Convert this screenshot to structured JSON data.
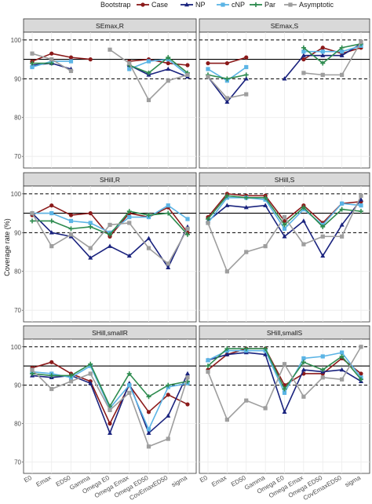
{
  "chart_data": {
    "type": "line",
    "legend": {
      "title": "Bootstrap",
      "position": "top"
    },
    "ylabel": "Coverage rate (%)",
    "ylim": [
      67,
      102
    ],
    "yticks": [
      70,
      80,
      90,
      100
    ],
    "reference_lines": {
      "solid": 95,
      "dashed": [
        90,
        100
      ]
    },
    "categories": [
      "E0",
      "Emax",
      "ED50",
      "Gamma",
      "Omega E0",
      "Omega Emax",
      "Omega ED50",
      "CovEmaxED50",
      "sigma"
    ],
    "colors": {
      "Case": "#8b1a1a",
      "NP": "#1a237e",
      "cNP": "#5bb4e5",
      "Par": "#2e8b4f",
      "Asymptotic": "#9e9e9e"
    },
    "markers": {
      "Case": "circle",
      "NP": "triangle",
      "cNP": "square",
      "Par": "cross",
      "Asymptotic": "square"
    },
    "panels": [
      {
        "title": "SEmax,R",
        "series": [
          {
            "name": "Case",
            "values": [
              94.5,
              96.5,
              95.5,
              95,
              null,
              94.5,
              95,
              94,
              93.5
            ]
          },
          {
            "name": "NP",
            "values": [
              93.5,
              94,
              92.5,
              null,
              null,
              93.5,
              91,
              92.5,
              90.5
            ]
          },
          {
            "name": "cNP",
            "values": [
              93,
              94.5,
              94.5,
              null,
              null,
              92.5,
              94.5,
              95,
              91
            ]
          },
          {
            "name": "Par",
            "values": [
              94,
              94,
              null,
              null,
              null,
              93.5,
              91.5,
              95.5,
              91.5
            ]
          },
          {
            "name": "Asymptotic",
            "values": [
              96.5,
              95,
              92,
              null,
              97.5,
              94,
              84.5,
              89.5,
              91
            ]
          }
        ]
      },
      {
        "title": "SEmax,S",
        "series": [
          {
            "name": "Case",
            "values": [
              94,
              94,
              95.5,
              null,
              null,
              95,
              98,
              96.5,
              98
            ]
          },
          {
            "name": "NP",
            "values": [
              90.5,
              84,
              90,
              null,
              90,
              96,
              96,
              96,
              99
            ]
          },
          {
            "name": "cNP",
            "values": [
              92.5,
              89.5,
              93,
              null,
              null,
              97,
              97,
              97,
              98.5
            ]
          },
          {
            "name": "Par",
            "values": [
              91,
              90,
              91,
              null,
              null,
              98,
              94,
              98,
              99
            ]
          },
          {
            "name": "Asymptotic",
            "values": [
              90.5,
              85,
              86,
              null,
              null,
              91.5,
              91,
              91,
              99.5
            ]
          }
        ]
      },
      {
        "title": "SHill,R",
        "series": [
          {
            "name": "Case",
            "values": [
              94.5,
              97,
              94.5,
              95,
              89,
              95,
              94,
              96.5,
              90
            ]
          },
          {
            "name": "NP",
            "values": [
              95,
              90,
              89,
              83.5,
              86.5,
              84,
              88.5,
              81,
              91.5
            ]
          },
          {
            "name": "cNP",
            "values": [
              95,
              95,
              93,
              92.5,
              90,
              94,
              94,
              97,
              93.5
            ]
          },
          {
            "name": "Par",
            "values": [
              93,
              93,
              91,
              91.5,
              89.5,
              95.5,
              94.5,
              95,
              89.5
            ]
          },
          {
            "name": "Asymptotic",
            "values": [
              95,
              86.5,
              89.5,
              86,
              92,
              92.5,
              86,
              82,
              91
            ]
          }
        ]
      },
      {
        "title": "SHill,S",
        "series": [
          {
            "name": "Case",
            "values": [
              94,
              100,
              99.5,
              99.5,
              93,
              97,
              92.5,
              97.5,
              98
            ]
          },
          {
            "name": "NP",
            "values": [
              93,
              97,
              96.5,
              97,
              89,
              93,
              84,
              92,
              98.5
            ]
          },
          {
            "name": "cNP",
            "values": [
              92.5,
              99,
              99,
              98.5,
              91,
              96,
              92,
              97.5,
              97
            ]
          },
          {
            "name": "Par",
            "values": [
              93.5,
              99.5,
              99,
              99,
              92,
              96.5,
              91.5,
              96,
              95.5
            ]
          },
          {
            "name": "Asymptotic",
            "values": [
              92.5,
              80,
              85,
              86.5,
              94,
              87,
              89,
              89,
              99.5
            ]
          }
        ]
      },
      {
        "title": "SHill,smallR",
        "series": [
          {
            "name": "Case",
            "values": [
              94.5,
              96,
              93,
              91,
              80,
              90,
              83,
              87.5,
              85
            ]
          },
          {
            "name": "NP",
            "values": [
              92.5,
              92,
              92.5,
              90.5,
              77.5,
              90.5,
              77.5,
              82,
              93
            ]
          },
          {
            "name": "cNP",
            "values": [
              93.5,
              93,
              92,
              95,
              84,
              90,
              78.5,
              89.5,
              90.5
            ]
          },
          {
            "name": "Par",
            "values": [
              93,
              92.5,
              92.5,
              95.5,
              84.5,
              93,
              87,
              90,
              91
            ]
          },
          {
            "name": "Asymptotic",
            "values": [
              94,
              89,
              91,
              93,
              83.5,
              88,
              74,
              76,
              92
            ]
          }
        ]
      },
      {
        "title": "SHill,smallS",
        "series": [
          {
            "name": "Case",
            "values": [
              94,
              98,
              99.5,
              99.5,
              90,
              93,
              93,
              97,
              93
            ]
          },
          {
            "name": "NP",
            "values": [
              96.5,
              98,
              98.5,
              98,
              83,
              94,
              93.5,
              94,
              91
            ]
          },
          {
            "name": "cNP",
            "values": [
              96.5,
              99,
              99,
              99,
              88,
              97,
              97.5,
              98.5,
              92
            ]
          },
          {
            "name": "Par",
            "values": [
              95,
              99.5,
              99.5,
              99.5,
              89,
              96,
              94,
              97.5,
              91.5
            ]
          },
          {
            "name": "Asymptotic",
            "values": [
              93.5,
              81,
              86,
              84,
              95.5,
              87,
              92,
              91.5,
              100
            ]
          }
        ]
      }
    ]
  }
}
